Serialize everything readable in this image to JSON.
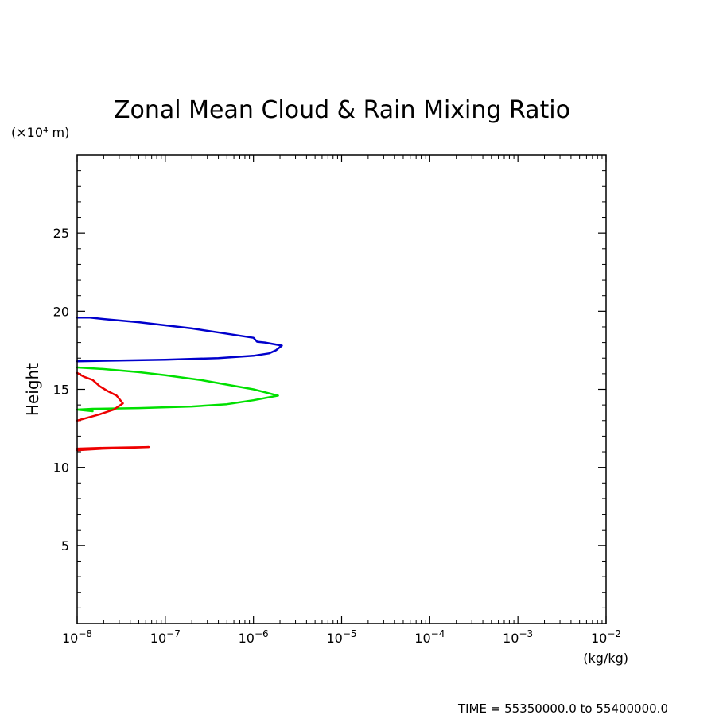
{
  "chart_data": {
    "type": "line",
    "title": "Zonal Mean Cloud & Rain Mixing Ratio",
    "xlabel": "(kg/kg)",
    "ylabel": "Height",
    "yunit": "(×10⁴ m)",
    "xscale": "log",
    "xlim": [
      1e-08,
      0.01
    ],
    "ylim": [
      0,
      30
    ],
    "xticks": [
      {
        "base": "10",
        "exp": "−8"
      },
      {
        "base": "10",
        "exp": "−7"
      },
      {
        "base": "10",
        "exp": "−6"
      },
      {
        "base": "10",
        "exp": "−5"
      },
      {
        "base": "10",
        "exp": "−4"
      },
      {
        "base": "10",
        "exp": "−3"
      },
      {
        "base": "10",
        "exp": "−2"
      }
    ],
    "yticks": [
      "5",
      "10",
      "15",
      "20",
      "25"
    ],
    "ytick_values": [
      5,
      10,
      15,
      20,
      25
    ],
    "footer": "TIME = 55350000.0 to 55400000.0",
    "grid": false,
    "series": [
      {
        "color": "#0000cc",
        "points": [
          {
            "x": 1e-08,
            "y": 19.6
          },
          {
            "x": 1.4e-08,
            "y": 19.6
          },
          {
            "x": 2e-08,
            "y": 19.5
          },
          {
            "x": 5e-08,
            "y": 19.3
          },
          {
            "x": 1e-07,
            "y": 19.1
          },
          {
            "x": 2e-07,
            "y": 18.9
          },
          {
            "x": 4.5e-07,
            "y": 18.6
          },
          {
            "x": 1e-06,
            "y": 18.3
          },
          {
            "x": 1.1e-06,
            "y": 18.05
          },
          {
            "x": 1.35e-06,
            "y": 18.0
          },
          {
            "x": 2.1e-06,
            "y": 17.8
          },
          {
            "x": 1.8e-06,
            "y": 17.5
          },
          {
            "x": 1.5e-06,
            "y": 17.3
          },
          {
            "x": 1e-06,
            "y": 17.15
          },
          {
            "x": 4e-07,
            "y": 17.0
          },
          {
            "x": 1e-07,
            "y": 16.9
          },
          {
            "x": 3e-08,
            "y": 16.85
          },
          {
            "x": 1e-08,
            "y": 16.8
          }
        ]
      },
      {
        "color": "#00e000",
        "points": [
          {
            "x": 1e-08,
            "y": 16.4
          },
          {
            "x": 2e-08,
            "y": 16.3
          },
          {
            "x": 5e-08,
            "y": 16.1
          },
          {
            "x": 1e-07,
            "y": 15.9
          },
          {
            "x": 2.5e-07,
            "y": 15.6
          },
          {
            "x": 5e-07,
            "y": 15.3
          },
          {
            "x": 1e-06,
            "y": 15.0
          },
          {
            "x": 1.9e-06,
            "y": 14.6
          },
          {
            "x": 1e-06,
            "y": 14.3
          },
          {
            "x": 5e-07,
            "y": 14.05
          },
          {
            "x": 2e-07,
            "y": 13.9
          },
          {
            "x": 5e-08,
            "y": 13.8
          },
          {
            "x": 1.5e-08,
            "y": 13.75
          },
          {
            "x": 1e-08,
            "y": 13.7
          },
          {
            "x": 1.5e-08,
            "y": 13.6
          }
        ]
      },
      {
        "color": "#ee0000",
        "points": [
          {
            "x": 1e-08,
            "y": 16.05
          },
          {
            "x": 1.2e-08,
            "y": 15.8
          },
          {
            "x": 1.5e-08,
            "y": 15.6
          },
          {
            "x": 1.8e-08,
            "y": 15.2
          },
          {
            "x": 2.2e-08,
            "y": 14.9
          },
          {
            "x": 2.8e-08,
            "y": 14.6
          },
          {
            "x": 3.3e-08,
            "y": 14.1
          },
          {
            "x": 2.6e-08,
            "y": 13.7
          },
          {
            "x": 1.8e-08,
            "y": 13.4
          },
          {
            "x": 1e-08,
            "y": 13.0
          }
        ]
      },
      {
        "color": "#ee0000",
        "points": [
          {
            "x": 1e-08,
            "y": 11.1
          },
          {
            "x": 2e-08,
            "y": 11.2
          },
          {
            "x": 6.5e-08,
            "y": 11.3
          },
          {
            "x": 2e-08,
            "y": 11.25
          },
          {
            "x": 1e-08,
            "y": 11.2
          }
        ]
      }
    ]
  }
}
